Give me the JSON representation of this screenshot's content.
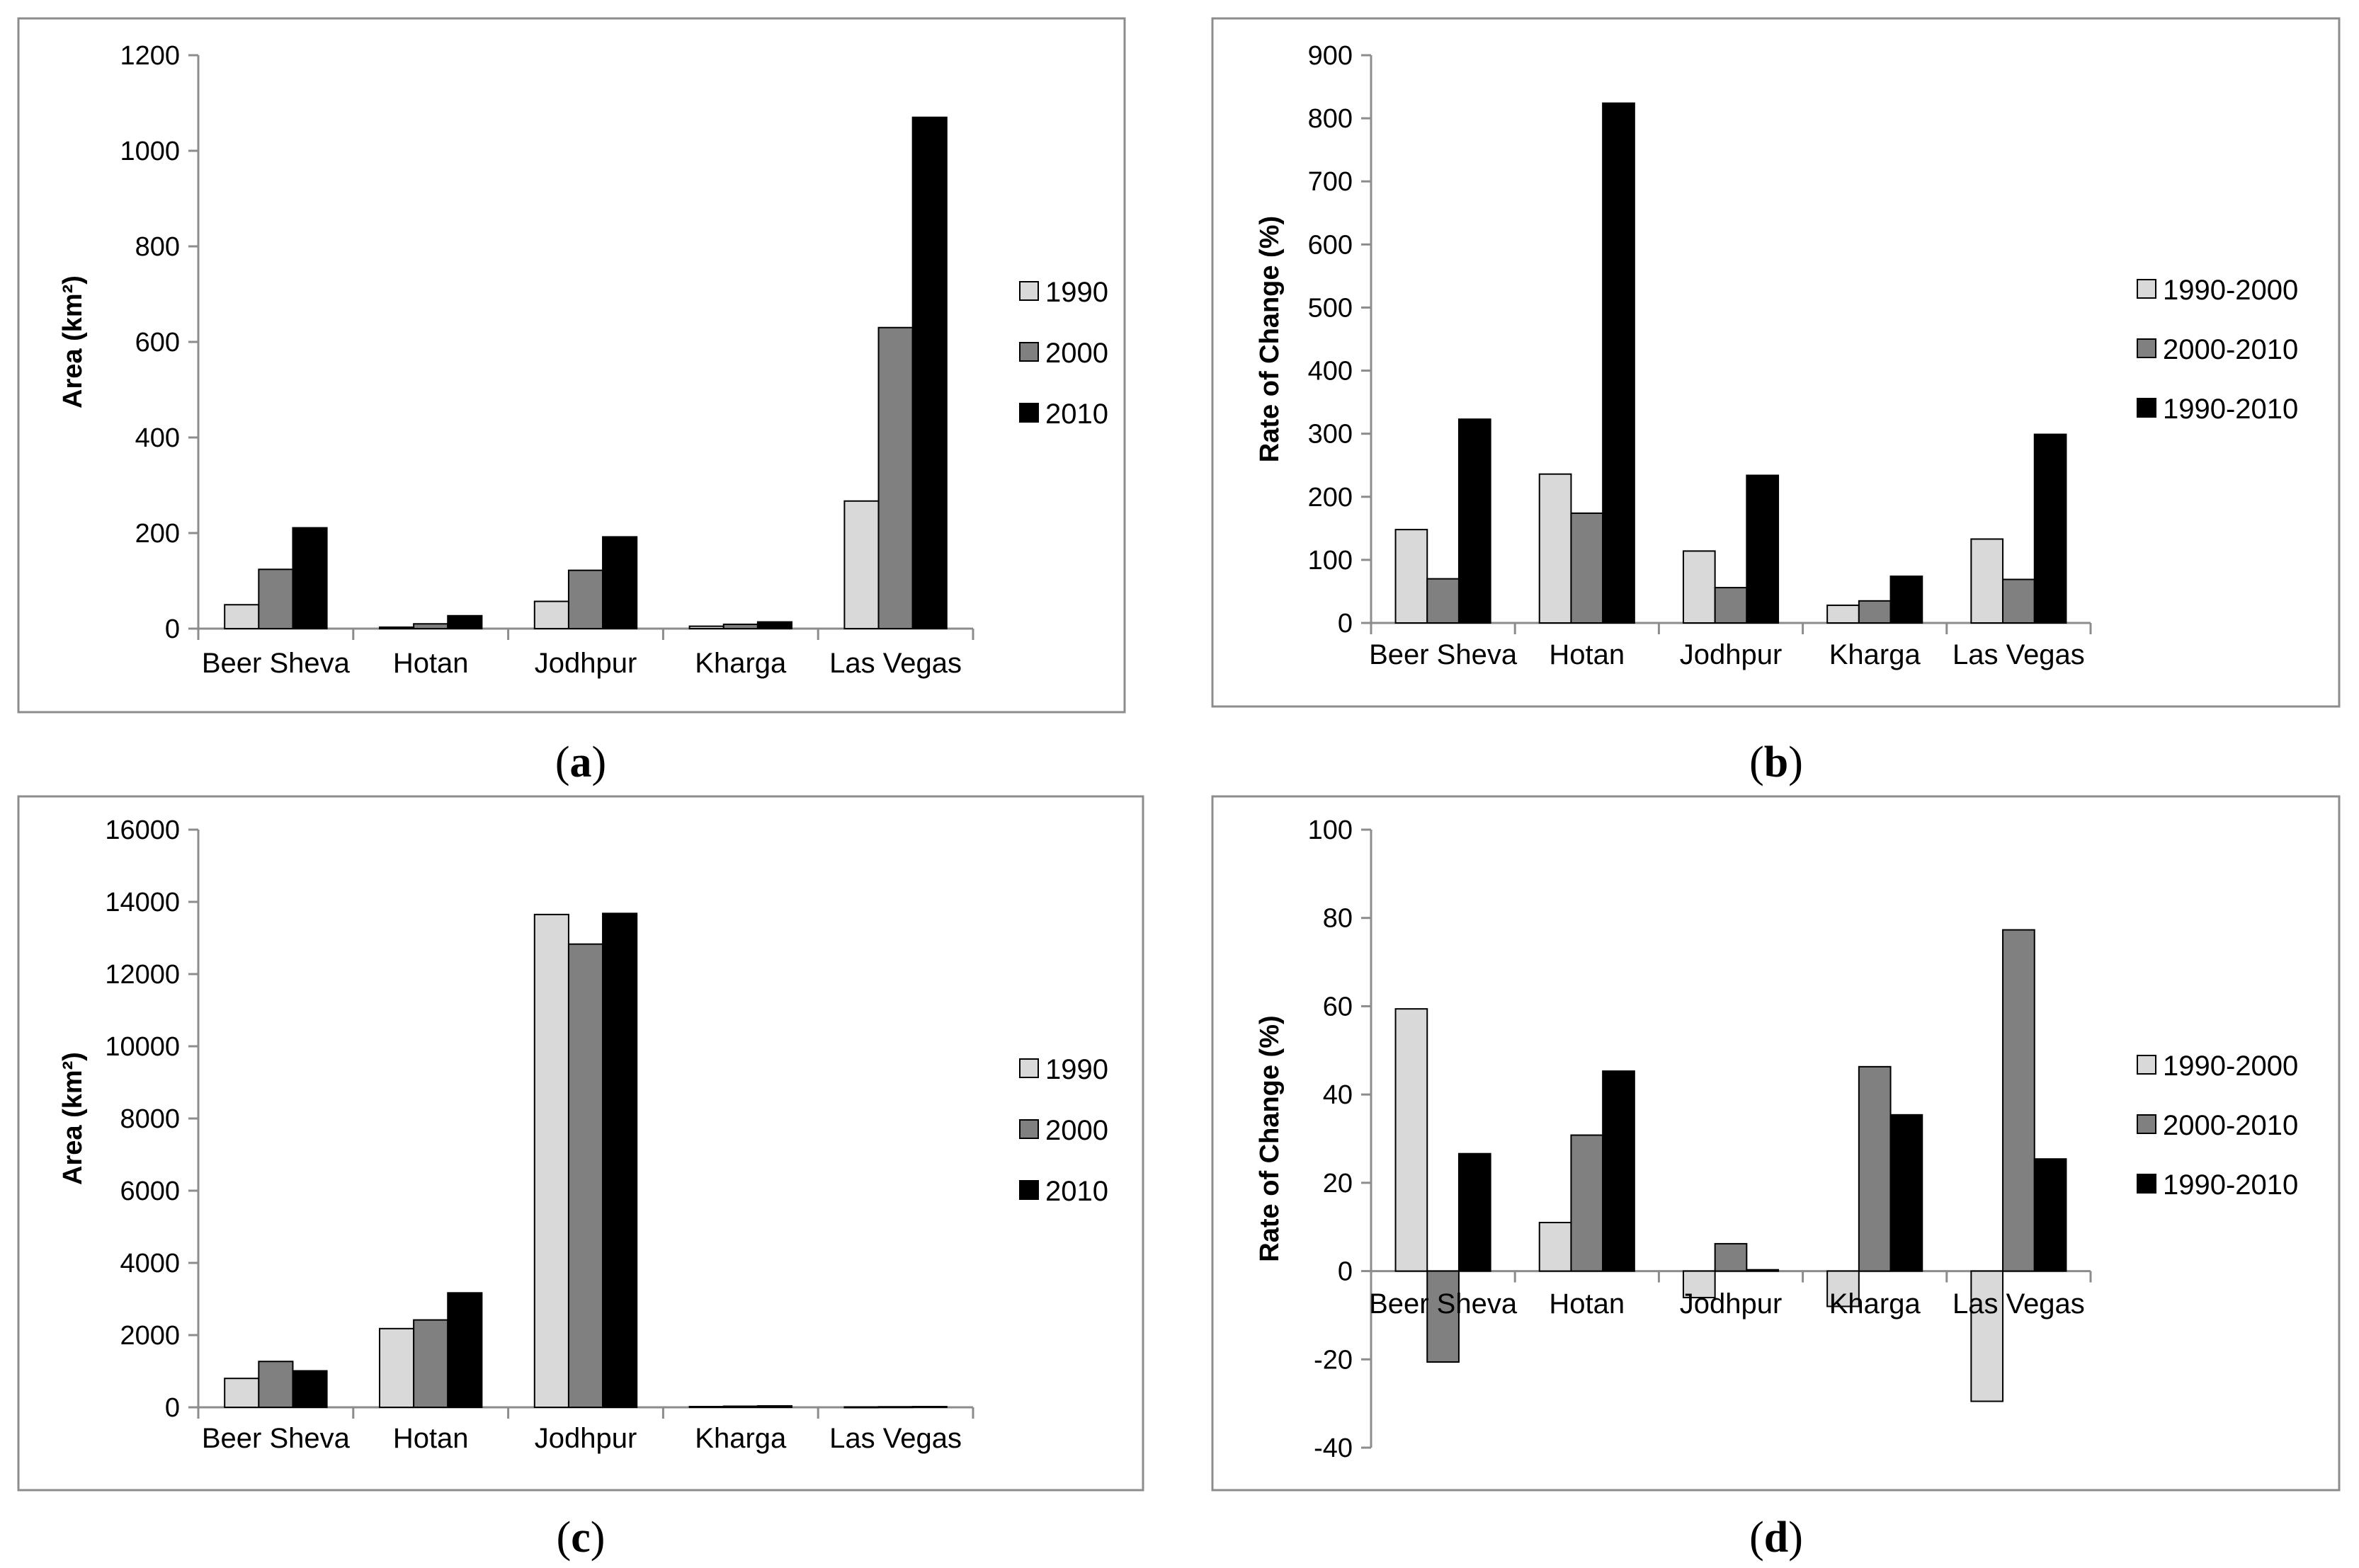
{
  "colors": {
    "light": "#d9d9d9",
    "mid": "#808080",
    "dark": "#000000",
    "frame": "#8c8c8c",
    "axis": "#8c8c8c"
  },
  "chart_data": [
    {
      "id": "a",
      "caption": "(a)",
      "caption_letter": "a",
      "type": "bar",
      "ylabel": "Area (km²)",
      "ylim": [
        0,
        1200
      ],
      "yticks": [
        0,
        200,
        400,
        600,
        800,
        1000,
        1200
      ],
      "categories": [
        "Beer Sheva",
        "Hotan",
        "Jodhpur",
        "Kharga",
        "Las Vegas"
      ],
      "legend_position": "right",
      "series": [
        {
          "name": "1990",
          "color": "light",
          "values": [
            50,
            3,
            57,
            5,
            267
          ]
        },
        {
          "name": "2000",
          "color": "mid",
          "values": [
            124,
            10,
            122,
            9,
            630
          ]
        },
        {
          "name": "2010",
          "color": "dark",
          "values": [
            211,
            27,
            192,
            14,
            1070
          ]
        }
      ]
    },
    {
      "id": "b",
      "caption": "(b)",
      "caption_letter": "b",
      "type": "bar",
      "ylabel": "Rate of Change (%)",
      "ylim": [
        0,
        900
      ],
      "yticks": [
        0,
        100,
        200,
        300,
        400,
        500,
        600,
        700,
        800,
        900
      ],
      "categories": [
        "Beer Sheva",
        "Hotan",
        "Jodhpur",
        "Kharga",
        "Las Vegas"
      ],
      "legend_position": "right",
      "series": [
        {
          "name": "1990-2000",
          "color": "light",
          "values": [
            148,
            236,
            114,
            28,
            133
          ]
        },
        {
          "name": "2000-2010",
          "color": "mid",
          "values": [
            70,
            174,
            56,
            35,
            69
          ]
        },
        {
          "name": "1990-2010",
          "color": "dark",
          "values": [
            323,
            824,
            234,
            74,
            299
          ]
        }
      ]
    },
    {
      "id": "c",
      "caption": "(c)",
      "caption_letter": "c",
      "type": "bar",
      "ylabel": "Area (km²)",
      "ylim": [
        0,
        16000
      ],
      "yticks": [
        0,
        2000,
        4000,
        6000,
        8000,
        10000,
        12000,
        14000,
        16000
      ],
      "categories": [
        "Beer Sheva",
        "Hotan",
        "Jodhpur",
        "Kharga",
        "Las Vegas"
      ],
      "legend_position": "right",
      "series": [
        {
          "name": "1990",
          "color": "light",
          "values": [
            800,
            2180,
            13650,
            20,
            10
          ]
        },
        {
          "name": "2000",
          "color": "mid",
          "values": [
            1270,
            2420,
            12830,
            30,
            15
          ]
        },
        {
          "name": "2010",
          "color": "dark",
          "values": [
            1010,
            3170,
            13680,
            40,
            20
          ]
        }
      ]
    },
    {
      "id": "d",
      "caption": "(d)",
      "caption_letter": "d",
      "type": "bar",
      "ylabel": "Rate of Change (%)",
      "ylim": [
        -40,
        100
      ],
      "yticks": [
        -40,
        -20,
        0,
        20,
        40,
        60,
        80,
        100
      ],
      "categories": [
        "Beer Sheva",
        "Hotan",
        "Jodhpur",
        "Kharga",
        "Las Vegas"
      ],
      "legend_position": "right",
      "series": [
        {
          "name": "1990-2000",
          "color": "light",
          "values": [
            59.4,
            11,
            -6,
            -8,
            -29.5
          ]
        },
        {
          "name": "2000-2010",
          "color": "mid",
          "values": [
            -20.6,
            30.8,
            6.2,
            46.3,
            77.3
          ]
        },
        {
          "name": "1990-2010",
          "color": "dark",
          "values": [
            26.6,
            45.3,
            0.3,
            35.4,
            25.4
          ]
        }
      ]
    }
  ]
}
